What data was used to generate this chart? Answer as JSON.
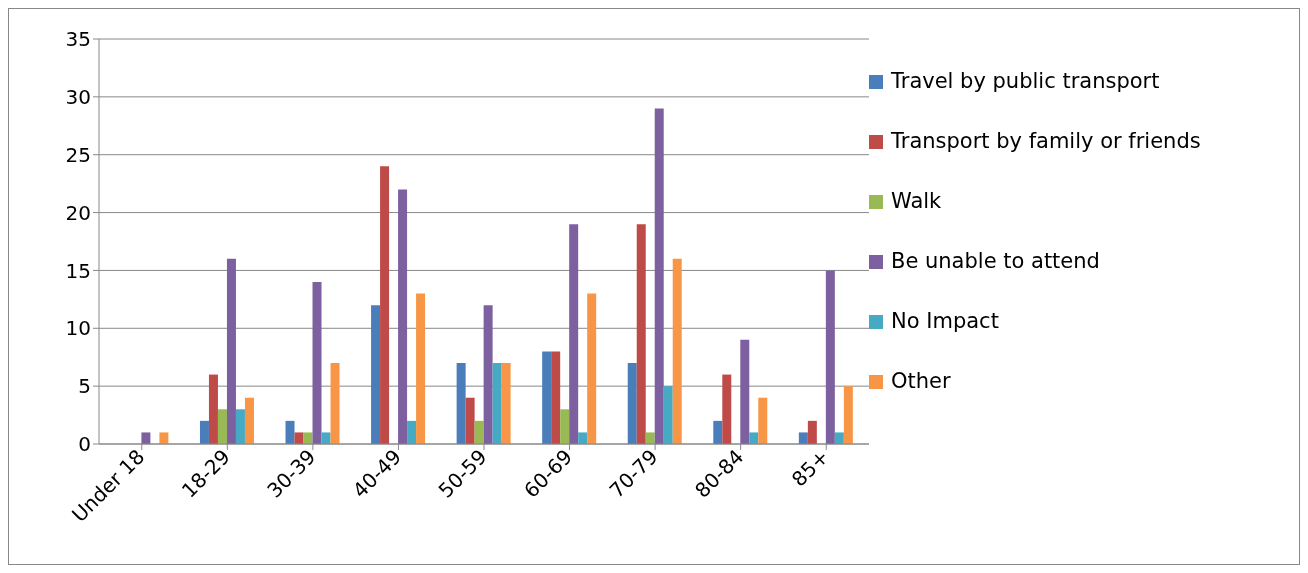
{
  "chart_data": {
    "type": "bar",
    "categories": [
      "Under 18",
      "18-29",
      "30-39",
      "40-49",
      "50-59",
      "60-69",
      "70-79",
      "80-84",
      "85+"
    ],
    "series": [
      {
        "name": "Travel by public transport",
        "color": "#4a7ebb",
        "values": [
          0,
          2,
          2,
          12,
          7,
          8,
          7,
          2,
          1
        ]
      },
      {
        "name": "Transport by family or friends",
        "color": "#be4b48",
        "values": [
          0,
          6,
          1,
          24,
          4,
          8,
          19,
          6,
          2
        ]
      },
      {
        "name": "Walk",
        "color": "#98b954",
        "values": [
          0,
          3,
          1,
          0,
          2,
          3,
          1,
          0,
          0
        ]
      },
      {
        "name": "Be unable to attend",
        "color": "#7d60a0",
        "values": [
          1,
          16,
          14,
          22,
          12,
          19,
          29,
          9,
          15
        ]
      },
      {
        "name": "No Impact",
        "color": "#46aac5",
        "values": [
          0,
          3,
          1,
          2,
          7,
          1,
          5,
          1,
          1
        ]
      },
      {
        "name": "Other",
        "color": "#f79646",
        "values": [
          1,
          4,
          7,
          13,
          7,
          13,
          16,
          4,
          5
        ]
      }
    ],
    "ylim": [
      0,
      35
    ],
    "yticks": [
      0,
      5,
      10,
      15,
      20,
      25,
      30,
      35
    ],
    "grid": "y",
    "legend": "right"
  }
}
